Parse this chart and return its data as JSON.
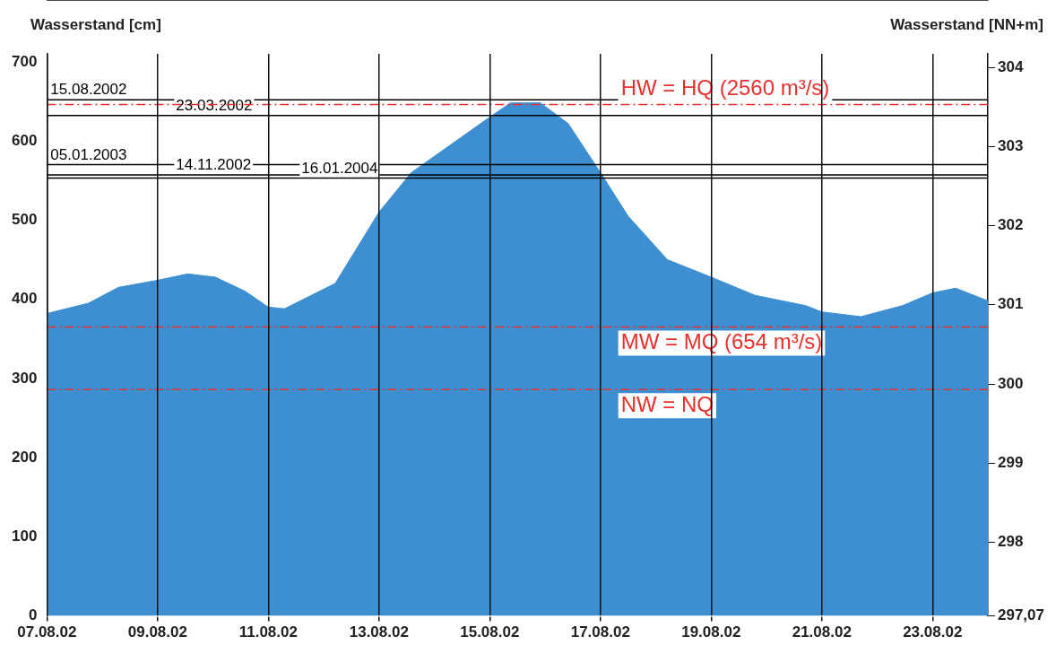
{
  "chart_data": {
    "type": "area",
    "ylabel": "Wasserstand [cm]",
    "y2label": "Wasserstand [NN+m]",
    "x": [
      "2002-08-07T00:00",
      "2002-08-07T18:00",
      "2002-08-08T07:00",
      "2002-08-09T00:00",
      "2002-08-09T13:00",
      "2002-08-10T01:00",
      "2002-08-10T14:00",
      "2002-08-11T00:00",
      "2002-08-11T07:00",
      "2002-08-12T05:00",
      "2002-08-13T00:00",
      "2002-08-13T14:00",
      "2002-08-14T07:00",
      "2002-08-15T00:00",
      "2002-08-15T09:00",
      "2002-08-15T22:00",
      "2002-08-16T10:00",
      "2002-08-17T00:00",
      "2002-08-17T12:00",
      "2002-08-18T05:00",
      "2002-08-19T00:00",
      "2002-08-19T19:00",
      "2002-08-20T17:00",
      "2002-08-21T00:00",
      "2002-08-21T17:00",
      "2002-08-22T11:00",
      "2002-08-23T00:00",
      "2002-08-23T10:00",
      "2002-08-24T00:00"
    ],
    "series": [
      {
        "color": "#3d8fd1",
        "values": [
          382,
          395,
          415,
          424,
          432,
          428,
          410,
          390,
          388,
          420,
          510,
          560,
          595,
          630,
          648,
          648,
          622,
          560,
          505,
          450,
          428,
          405,
          392,
          384,
          378,
          392,
          408,
          414,
          398
        ]
      }
    ],
    "xlim": [
      "2002-08-07T00:00",
      "2002-08-24T00:00"
    ],
    "xticks": [
      {
        "value": "2002-08-07",
        "label": "07.08.02"
      },
      {
        "value": "2002-08-09",
        "label": "09.08.02"
      },
      {
        "value": "2002-08-11",
        "label": "11.08.02"
      },
      {
        "value": "2002-08-13",
        "label": "13.08.02"
      },
      {
        "value": "2002-08-15",
        "label": "15.08.02"
      },
      {
        "value": "2002-08-17",
        "label": "17.08.02"
      },
      {
        "value": "2002-08-19",
        "label": "19.08.02"
      },
      {
        "value": "2002-08-21",
        "label": "21.08.02"
      },
      {
        "value": "2002-08-23",
        "label": "23.08.02"
      }
    ],
    "ylim": [
      0,
      710
    ],
    "yticks": [
      0,
      100,
      200,
      300,
      400,
      500,
      600,
      700
    ],
    "y2lim": [
      297.07,
      304.17
    ],
    "y2ticks": [
      {
        "value": 297.07,
        "label": "297,07"
      },
      298,
      299,
      300,
      301,
      302,
      303,
      304
    ],
    "grid": "x",
    "legend": false,
    "marker": "none",
    "ref_lines": [
      {
        "axis": "y",
        "value": 652,
        "label": "15.08.2002",
        "color": "#000000",
        "line_style": "solid"
      },
      {
        "axis": "y",
        "value": 632,
        "label": "23.03.2002",
        "color": "#000000",
        "line_style": "solid"
      },
      {
        "axis": "y",
        "value": 570,
        "label": "05.01.2003",
        "color": "#000000",
        "line_style": "solid"
      },
      {
        "axis": "y",
        "value": 557,
        "label": "14.11.2002",
        "color": "#000000",
        "line_style": "solid"
      },
      {
        "axis": "y",
        "value": 553,
        "label": "16.01.2004",
        "color": "#000000",
        "line_style": "solid"
      },
      {
        "axis": "y",
        "value": 646,
        "label": "HW = HQ (2560 m³/s)",
        "color": "#e8312f",
        "line_style": "dashed"
      },
      {
        "axis": "y",
        "value": 365,
        "label": "MW = MQ (654 m³/s)",
        "color": "#e8312f",
        "line_style": "dashed"
      },
      {
        "axis": "y",
        "value": 286,
        "label": "NW = NQ",
        "color": "#e8312f",
        "line_style": "dashed"
      }
    ]
  }
}
